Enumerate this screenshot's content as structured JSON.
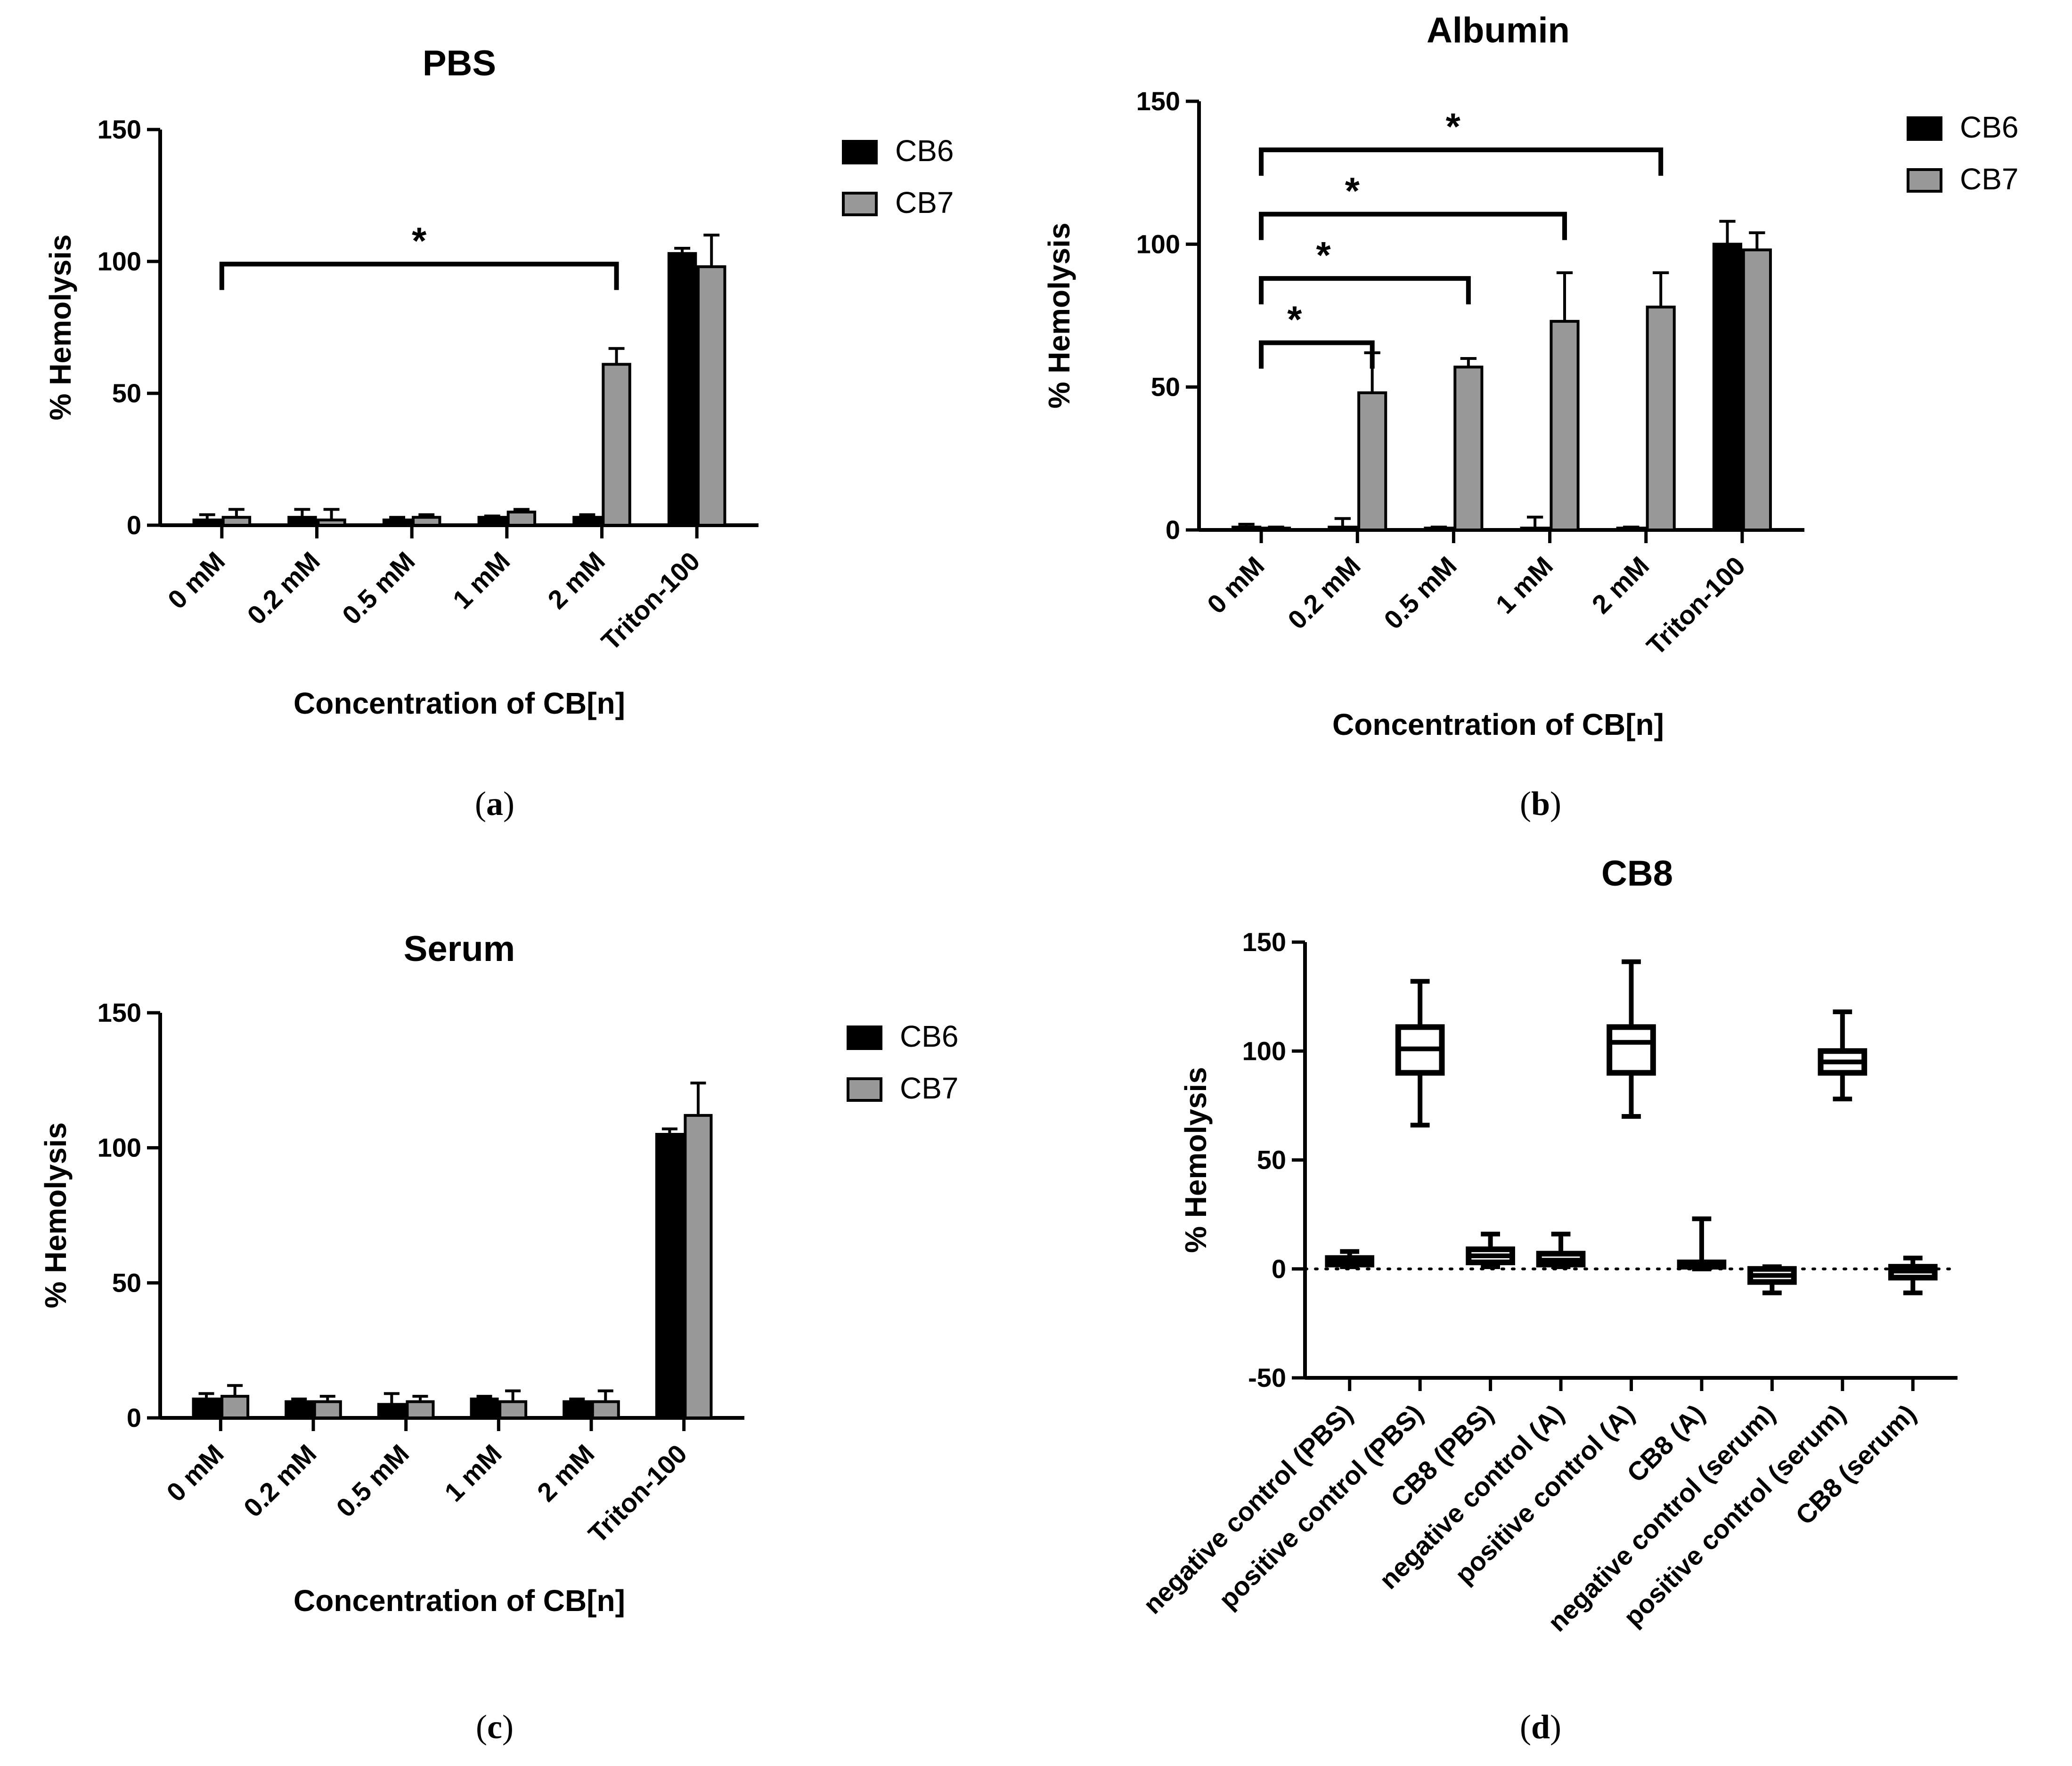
{
  "colors": {
    "CB6": "#000000",
    "CB7": "#999999",
    "axis": "#000000"
  },
  "captions": [
    "a",
    "b",
    "c",
    "d"
  ],
  "chart_data": [
    {
      "id": "a",
      "type": "bar",
      "title": "PBS",
      "xlabel": "Concentration of CB[n]",
      "ylabel": "% Hemolysis",
      "ylim": [
        0,
        150
      ],
      "yticks": [
        0,
        50,
        100,
        150
      ],
      "categories": [
        "0 mM",
        "0.2 mM",
        "0.5 mM",
        "1 mM",
        "2 mM",
        "Triton-100"
      ],
      "series": [
        {
          "name": "CB6",
          "values": [
            2,
            3,
            2,
            3,
            3,
            103
          ],
          "errors": [
            2,
            3,
            1,
            0.5,
            1,
            2
          ]
        },
        {
          "name": "CB7",
          "values": [
            3,
            2,
            3,
            5,
            61,
            98
          ],
          "errors": [
            3,
            4,
            1,
            1,
            6,
            12
          ]
        }
      ],
      "significance": [
        {
          "from": 0,
          "to": 4,
          "label": "*"
        }
      ]
    },
    {
      "id": "b",
      "type": "bar",
      "title": "Albumin",
      "xlabel": "Concentration of CB[n]",
      "ylabel": "% Hemolysis",
      "ylim": [
        0,
        150
      ],
      "yticks": [
        0,
        50,
        100,
        150
      ],
      "categories": [
        "0 mM",
        "0.2 mM",
        "0.5 mM",
        "1 mM",
        "2 mM",
        "Triton-100"
      ],
      "series": [
        {
          "name": "CB6",
          "values": [
            1,
            1,
            0.5,
            0.5,
            0.5,
            100
          ],
          "errors": [
            1,
            3,
            0.5,
            4,
            0.5,
            8
          ]
        },
        {
          "name": "CB7",
          "values": [
            0.5,
            48,
            57,
            73,
            78,
            98
          ],
          "errors": [
            0.5,
            14,
            3,
            17,
            12,
            6
          ]
        }
      ],
      "significance": [
        {
          "from": 0,
          "to": 4,
          "label": "*"
        },
        {
          "from": 0,
          "to": 3,
          "label": "*"
        },
        {
          "from": 0,
          "to": 2,
          "label": "*"
        },
        {
          "from": 0,
          "to": 1,
          "label": "*"
        }
      ]
    },
    {
      "id": "c",
      "type": "bar",
      "title": "Serum",
      "xlabel": "Concentration of CB[n]",
      "ylabel": "% Hemolysis",
      "ylim": [
        0,
        150
      ],
      "yticks": [
        0,
        50,
        100,
        150
      ],
      "categories": [
        "0 mM",
        "0.2 mM",
        "0.5 mM",
        "1 mM",
        "2 mM",
        "Triton-100"
      ],
      "series": [
        {
          "name": "CB6",
          "values": [
            7,
            6,
            5,
            7,
            6,
            105
          ],
          "errors": [
            2,
            1,
            4,
            1,
            1,
            2
          ]
        },
        {
          "name": "CB7",
          "values": [
            8,
            6,
            6,
            6,
            6,
            112
          ],
          "errors": [
            4,
            2,
            2,
            4,
            4,
            12
          ]
        }
      ],
      "significance": []
    },
    {
      "id": "d",
      "type": "box",
      "title": "CB8",
      "xlabel": "",
      "ylabel": "% Hemolysis",
      "ylim": [
        -50,
        150
      ],
      "yticks": [
        -50,
        0,
        50,
        100,
        150
      ],
      "reference_line": 0,
      "categories": [
        "negative control (PBS)",
        "positive control (PBS)",
        "CB8 (PBS)",
        "negative control (A)",
        "positive control (A)",
        "CB8 (A)",
        "negative control (serum)",
        "positive control (serum)",
        "CB8 (serum)"
      ],
      "boxes": [
        {
          "min": 1,
          "q1": 2,
          "median": 4,
          "q3": 5,
          "max": 8
        },
        {
          "min": 66,
          "q1": 90,
          "median": 101,
          "q3": 111,
          "max": 132
        },
        {
          "min": 1,
          "q1": 3,
          "median": 6,
          "q3": 9,
          "max": 16
        },
        {
          "min": 1,
          "q1": 2,
          "median": 4,
          "q3": 7,
          "max": 16
        },
        {
          "min": 70,
          "q1": 90,
          "median": 104,
          "q3": 111,
          "max": 141
        },
        {
          "min": 0,
          "q1": 1,
          "median": 2,
          "q3": 3,
          "max": 23
        },
        {
          "min": -11,
          "q1": -6,
          "median": -3,
          "q3": 0,
          "max": 1
        },
        {
          "min": 78,
          "q1": 90,
          "median": 95,
          "q3": 100,
          "max": 118
        },
        {
          "min": -11,
          "q1": -4,
          "median": -1,
          "q3": 1,
          "max": 5
        }
      ]
    }
  ]
}
